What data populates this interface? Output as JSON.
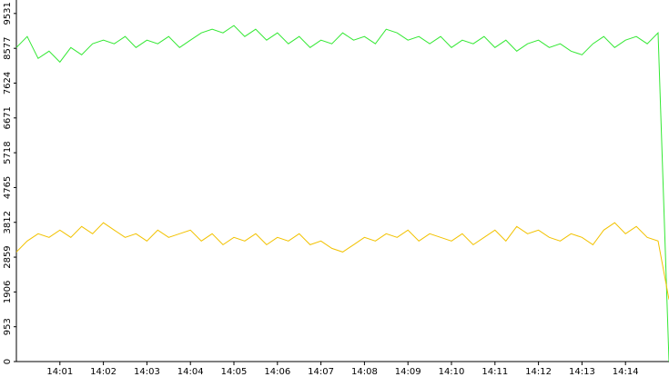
{
  "chart_data": {
    "type": "line",
    "x": [
      0,
      0.25,
      0.5,
      0.75,
      1,
      1.25,
      1.5,
      1.75,
      2,
      2.25,
      2.5,
      2.75,
      3,
      3.25,
      3.5,
      3.75,
      4,
      4.25,
      4.5,
      4.75,
      5,
      5.25,
      5.5,
      5.75,
      6,
      6.25,
      6.5,
      6.75,
      7,
      7.25,
      7.5,
      7.75,
      8,
      8.25,
      8.5,
      8.75,
      9,
      9.25,
      9.5,
      9.75,
      10,
      10.25,
      10.5,
      10.75,
      11,
      11.25,
      11.5,
      11.75,
      12,
      12.25,
      12.5,
      12.75,
      13,
      13.25,
      13.5,
      13.75,
      14,
      14.25,
      14.5,
      14.75,
      15
    ],
    "series": [
      {
        "color": "#33e833",
        "values": [
          8600,
          8900,
          8300,
          8500,
          8200,
          8600,
          8400,
          8700,
          8800,
          8700,
          8900,
          8600,
          8800,
          8700,
          8900,
          8600,
          8800,
          9000,
          9100,
          9000,
          9200,
          8900,
          9100,
          8800,
          9000,
          8700,
          8900,
          8600,
          8800,
          8700,
          9000,
          8800,
          8900,
          8700,
          9100,
          9000,
          8800,
          8900,
          8700,
          8900,
          8600,
          8800,
          8700,
          8900,
          8600,
          8800,
          8500,
          8700,
          8800,
          8600,
          8700,
          8500,
          8400,
          8700,
          8900,
          8600,
          8800,
          8900,
          8700,
          9000,
          0
        ]
      },
      {
        "color": "#f2c200",
        "values": [
          3000,
          3300,
          3500,
          3400,
          3600,
          3400,
          3700,
          3500,
          3800,
          3600,
          3400,
          3500,
          3300,
          3600,
          3400,
          3500,
          3600,
          3300,
          3500,
          3200,
          3400,
          3300,
          3500,
          3200,
          3400,
          3300,
          3500,
          3200,
          3300,
          3100,
          3000,
          3200,
          3400,
          3300,
          3500,
          3400,
          3600,
          3300,
          3500,
          3400,
          3300,
          3500,
          3200,
          3400,
          3600,
          3300,
          3700,
          3500,
          3600,
          3400,
          3300,
          3500,
          3400,
          3200,
          3600,
          3800,
          3500,
          3700,
          3400,
          3300,
          1700
        ]
      }
    ],
    "xlim": [
      0,
      15
    ],
    "xticks": [
      {
        "value": 1,
        "label": "14:01"
      },
      {
        "value": 2,
        "label": "14:02"
      },
      {
        "value": 3,
        "label": "14:03"
      },
      {
        "value": 4,
        "label": "14:04"
      },
      {
        "value": 5,
        "label": "14:05"
      },
      {
        "value": 6,
        "label": "14:06"
      },
      {
        "value": 7,
        "label": "14:07"
      },
      {
        "value": 8,
        "label": "14:08"
      },
      {
        "value": 9,
        "label": "14:09"
      },
      {
        "value": 10,
        "label": "14:10"
      },
      {
        "value": 11,
        "label": "14:11"
      },
      {
        "value": 12,
        "label": "14:12"
      },
      {
        "value": 13,
        "label": "14:13"
      },
      {
        "value": 14,
        "label": "14:14"
      }
    ],
    "ylim": [
      0,
      9900
    ],
    "yticks": [
      0,
      953,
      1906,
      2859,
      3812,
      4765,
      5718,
      6671,
      7624,
      8577,
      9531
    ]
  }
}
